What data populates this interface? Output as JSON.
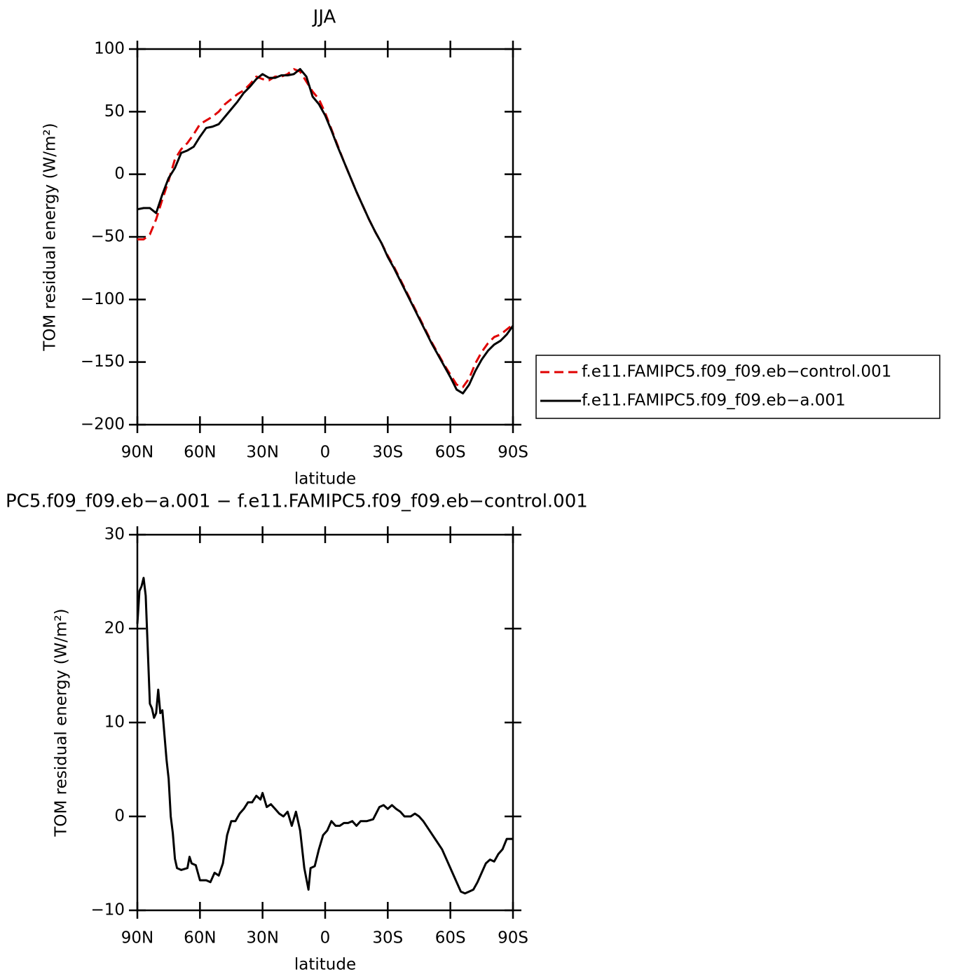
{
  "chart_data": [
    {
      "type": "line",
      "title": "JJA",
      "xlabel": "latitude",
      "ylabel": "TOM residual energy (W/m²)",
      "xlim": [
        90,
        -90
      ],
      "ylim": [
        -200,
        100
      ],
      "xticks": [
        {
          "value": 90,
          "label": "90N"
        },
        {
          "value": 60,
          "label": "60N"
        },
        {
          "value": 30,
          "label": "30N"
        },
        0,
        {
          "value": -30,
          "label": "30S"
        },
        {
          "value": -60,
          "label": "60S"
        },
        {
          "value": -90,
          "label": "90S"
        }
      ],
      "yticks": [
        {
          "value": -200,
          "label": "−200"
        },
        {
          "value": -150,
          "label": "−150"
        },
        {
          "value": -100,
          "label": "−100"
        },
        {
          "value": -50,
          "label": "−50"
        },
        0,
        50,
        100
      ],
      "legend": "outside-right",
      "x": [
        90,
        87,
        84,
        81,
        78,
        75,
        72,
        69,
        66,
        63,
        60,
        57,
        54,
        51,
        48,
        45,
        42,
        39,
        36,
        33,
        30,
        27,
        24,
        21,
        18,
        15,
        12,
        9,
        6,
        3,
        0,
        -3,
        -6,
        -9,
        -12,
        -15,
        -18,
        -21,
        -24,
        -27,
        -30,
        -33,
        -36,
        -39,
        -42,
        -45,
        -48,
        -51,
        -54,
        -57,
        -60,
        -63,
        -66,
        -69,
        -72,
        -75,
        -78,
        -81,
        -84,
        -87,
        -90
      ],
      "series": [
        {
          "name": "f.e11.FAMIPC5.f09_f09.eb−control.001",
          "color": "#e00000",
          "dashed": true,
          "values": [
            -52,
            -52,
            -48,
            -36,
            -20,
            -5,
            12,
            20,
            25,
            32,
            40,
            43,
            46,
            50,
            56,
            60,
            64,
            67,
            72,
            78,
            76,
            75,
            78,
            78,
            80,
            84,
            82,
            74,
            66,
            60,
            49,
            36,
            23,
            10,
            -2,
            -14,
            -25,
            -36,
            -46,
            -55,
            -65,
            -74,
            -84,
            -94,
            -104,
            -114,
            -124,
            -134,
            -143,
            -152,
            -160,
            -168,
            -170,
            -163,
            -151,
            -142,
            -135,
            -130,
            -128,
            -124,
            -120
          ]
        },
        {
          "name": "f.e11.FAMIPC5.f09_f09.eb−a.001",
          "color": "#000000",
          "dashed": false,
          "values": [
            -28,
            -27,
            -27,
            -31,
            -16,
            -3,
            5,
            17,
            19,
            22,
            30,
            37,
            38,
            40,
            46,
            52,
            58,
            65,
            70,
            76,
            80,
            77,
            77,
            79,
            79,
            80,
            84,
            78,
            62,
            56,
            47,
            35,
            22,
            10,
            -2,
            -14,
            -25,
            -36,
            -46,
            -55,
            -66,
            -75,
            -85,
            -95,
            -105,
            -115,
            -125,
            -135,
            -144,
            -153,
            -162,
            -172,
            -175,
            -168,
            -157,
            -148,
            -141,
            -136,
            -133,
            -128,
            -121
          ]
        }
      ]
    },
    {
      "type": "line",
      "title": "PC5.f09_f09.eb−a.001 − f.e11.FAMIPC5.f09_f09.eb−control.001",
      "xlabel": "latitude",
      "ylabel": "TOM residual energy (W/m²)",
      "xlim": [
        90,
        -90
      ],
      "ylim": [
        -10,
        30
      ],
      "xticks": [
        {
          "value": 90,
          "label": "90N"
        },
        {
          "value": 60,
          "label": "60N"
        },
        {
          "value": 30,
          "label": "30N"
        },
        0,
        {
          "value": -30,
          "label": "30S"
        },
        {
          "value": -60,
          "label": "60S"
        },
        {
          "value": -90,
          "label": "90S"
        }
      ],
      "yticks": [
        {
          "value": -10,
          "label": "−10"
        },
        0,
        10,
        20,
        30
      ],
      "x": [
        90,
        89,
        88,
        87,
        86,
        84,
        83,
        82,
        81,
        80,
        79,
        78,
        76,
        75,
        74,
        73,
        72,
        71,
        69,
        66,
        65,
        64,
        62,
        60,
        57,
        55,
        53,
        51,
        49,
        47,
        45,
        43,
        41,
        39,
        37,
        35,
        33,
        31,
        30,
        28,
        26,
        24,
        22,
        20,
        18,
        16,
        14,
        12,
        10,
        8,
        7,
        5,
        3,
        1,
        -1,
        -3,
        -5,
        -7,
        -9,
        -11,
        -13,
        -15,
        -17,
        -20,
        -23,
        -26,
        -28,
        -30,
        -32,
        -34,
        -36,
        -38,
        -41,
        -43,
        -45,
        -47,
        -50,
        -53,
        -56,
        -59,
        -62,
        -65,
        -67,
        -69,
        -71,
        -73,
        -75,
        -77,
        -79,
        -81,
        -83,
        -85,
        -87,
        -90
      ],
      "series": [
        {
          "color": "#000000",
          "dashed": false,
          "values": [
            20.5,
            24,
            24.5,
            25.4,
            23.5,
            12,
            11.5,
            10.5,
            11,
            13.5,
            11,
            11.3,
            6,
            4,
            0,
            -1.8,
            -4.5,
            -5.5,
            -5.7,
            -5.5,
            -4.3,
            -5,
            -5.2,
            -6.8,
            -6.8,
            -7,
            -6,
            -6.3,
            -5,
            -2,
            -0.5,
            -0.5,
            0.3,
            0.8,
            1.5,
            1.5,
            2.2,
            1.8,
            2.5,
            1,
            1.3,
            0.8,
            0.3,
            0,
            0.5,
            -1,
            0.5,
            -1.5,
            -5.5,
            -7.8,
            -5.5,
            -5.3,
            -3.5,
            -2,
            -1.5,
            -0.5,
            -1,
            -1,
            -0.7,
            -0.7,
            -0.5,
            -1,
            -0.5,
            -0.5,
            -0.3,
            1,
            1.2,
            0.8,
            1.2,
            0.8,
            0.5,
            0,
            0,
            0.3,
            0,
            -0.5,
            -1.5,
            -2.5,
            -3.5,
            -5,
            -6.5,
            -8,
            -8.2,
            -8,
            -7.8,
            -7,
            -6,
            -5,
            -4.6,
            -4.8,
            -4,
            -3.5,
            -2.4,
            -2.4
          ]
        }
      ]
    }
  ]
}
